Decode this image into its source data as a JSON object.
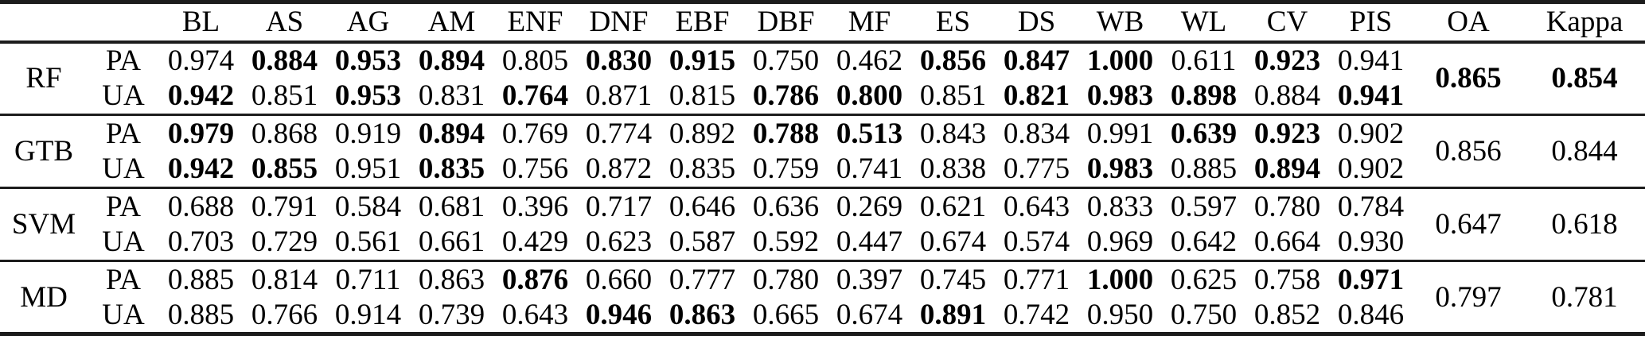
{
  "table": {
    "corner_label": "",
    "metric_corner_label": "",
    "class_headers": [
      "BL",
      "AS",
      "AG",
      "AM",
      "ENF",
      "DNF",
      "EBF",
      "DBF",
      "MF",
      "ES",
      "DS",
      "WB",
      "WL",
      "CV",
      "PIS"
    ],
    "summary_headers": [
      "OA",
      "Kappa"
    ],
    "text_color": "#000000",
    "rule_color": "#1c1c1c",
    "groups": [
      {
        "model": "RF",
        "rows": [
          {
            "metric": "PA",
            "values": [
              "0.974",
              "0.884",
              "0.953",
              "0.894",
              "0.805",
              "0.830",
              "0.915",
              "0.750",
              "0.462",
              "0.856",
              "0.847",
              "1.000",
              "0.611",
              "0.923",
              "0.941"
            ],
            "bold": [
              false,
              true,
              true,
              true,
              false,
              true,
              true,
              false,
              false,
              true,
              true,
              true,
              false,
              true,
              false
            ]
          },
          {
            "metric": "UA",
            "values": [
              "0.942",
              "0.851",
              "0.953",
              "0.831",
              "0.764",
              "0.871",
              "0.815",
              "0.786",
              "0.800",
              "0.851",
              "0.821",
              "0.983",
              "0.898",
              "0.884",
              "0.941"
            ],
            "bold": [
              true,
              false,
              true,
              false,
              true,
              false,
              false,
              true,
              true,
              false,
              true,
              true,
              true,
              false,
              true
            ]
          }
        ],
        "oa": {
          "value": "0.865",
          "bold": true
        },
        "kappa": {
          "value": "0.854",
          "bold": true
        }
      },
      {
        "model": "GTB",
        "rows": [
          {
            "metric": "PA",
            "values": [
              "0.979",
              "0.868",
              "0.919",
              "0.894",
              "0.769",
              "0.774",
              "0.892",
              "0.788",
              "0.513",
              "0.843",
              "0.834",
              "0.991",
              "0.639",
              "0.923",
              "0.902"
            ],
            "bold": [
              true,
              false,
              false,
              true,
              false,
              false,
              false,
              true,
              true,
              false,
              false,
              false,
              true,
              true,
              false
            ]
          },
          {
            "metric": "UA",
            "values": [
              "0.942",
              "0.855",
              "0.951",
              "0.835",
              "0.756",
              "0.872",
              "0.835",
              "0.759",
              "0.741",
              "0.838",
              "0.775",
              "0.983",
              "0.885",
              "0.894",
              "0.902"
            ],
            "bold": [
              true,
              true,
              false,
              true,
              false,
              false,
              false,
              false,
              false,
              false,
              false,
              true,
              false,
              true,
              false
            ]
          }
        ],
        "oa": {
          "value": "0.856",
          "bold": false
        },
        "kappa": {
          "value": "0.844",
          "bold": false
        }
      },
      {
        "model": "SVM",
        "rows": [
          {
            "metric": "PA",
            "values": [
              "0.688",
              "0.791",
              "0.584",
              "0.681",
              "0.396",
              "0.717",
              "0.646",
              "0.636",
              "0.269",
              "0.621",
              "0.643",
              "0.833",
              "0.597",
              "0.780",
              "0.784"
            ],
            "bold": [
              false,
              false,
              false,
              false,
              false,
              false,
              false,
              false,
              false,
              false,
              false,
              false,
              false,
              false,
              false
            ]
          },
          {
            "metric": "UA",
            "values": [
              "0.703",
              "0.729",
              "0.561",
              "0.661",
              "0.429",
              "0.623",
              "0.587",
              "0.592",
              "0.447",
              "0.674",
              "0.574",
              "0.969",
              "0.642",
              "0.664",
              "0.930"
            ],
            "bold": [
              false,
              false,
              false,
              false,
              false,
              false,
              false,
              false,
              false,
              false,
              false,
              false,
              false,
              false,
              false
            ]
          }
        ],
        "oa": {
          "value": "0.647",
          "bold": false
        },
        "kappa": {
          "value": "0.618",
          "bold": false
        }
      },
      {
        "model": "MD",
        "rows": [
          {
            "metric": "PA",
            "values": [
              "0.885",
              "0.814",
              "0.711",
              "0.863",
              "0.876",
              "0.660",
              "0.777",
              "0.780",
              "0.397",
              "0.745",
              "0.771",
              "1.000",
              "0.625",
              "0.758",
              "0.971"
            ],
            "bold": [
              false,
              false,
              false,
              false,
              true,
              false,
              false,
              false,
              false,
              false,
              false,
              true,
              false,
              false,
              true
            ]
          },
          {
            "metric": "UA",
            "values": [
              "0.885",
              "0.766",
              "0.914",
              "0.739",
              "0.643",
              "0.946",
              "0.863",
              "0.665",
              "0.674",
              "0.891",
              "0.742",
              "0.950",
              "0.750",
              "0.852",
              "0.846"
            ],
            "bold": [
              false,
              false,
              false,
              false,
              false,
              true,
              true,
              false,
              false,
              true,
              false,
              false,
              false,
              false,
              false
            ]
          }
        ],
        "oa": {
          "value": "0.797",
          "bold": false
        },
        "kappa": {
          "value": "0.781",
          "bold": false
        }
      }
    ]
  }
}
